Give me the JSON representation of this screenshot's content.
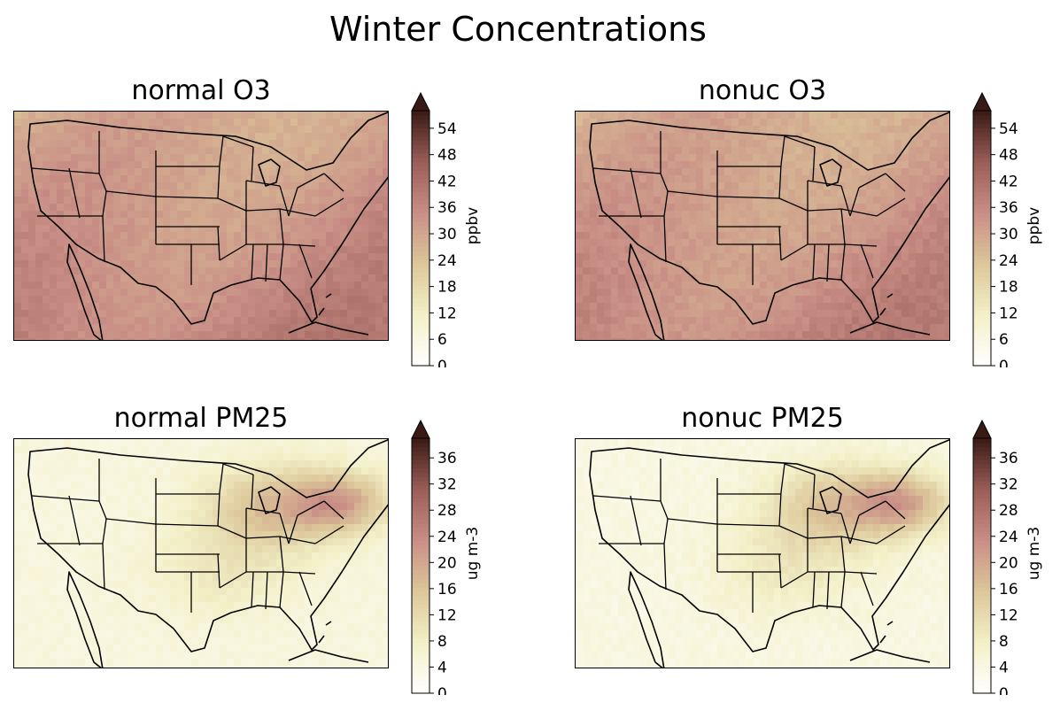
{
  "figure": {
    "suptitle": "Winter Concentrations"
  },
  "panels": [
    {
      "id": "normal-o3",
      "title": "normal O3",
      "colorbar": {
        "label": "ppbv",
        "min": 0,
        "max": 58,
        "extend": "max",
        "ticks": [
          "0",
          "6",
          "12",
          "18",
          "24",
          "30",
          "36",
          "42",
          "48",
          "54"
        ]
      },
      "field_level": 0.55
    },
    {
      "id": "nonuc-o3",
      "title": "nonuc O3",
      "colorbar": {
        "label": "ppbv",
        "min": 0,
        "max": 58,
        "extend": "max",
        "ticks": [
          "0",
          "6",
          "12",
          "18",
          "24",
          "30",
          "36",
          "42",
          "48",
          "54"
        ]
      },
      "field_level": 0.54
    },
    {
      "id": "normal-pm25",
      "title": "normal PM25",
      "colorbar": {
        "label": "ug m-3",
        "min": 0,
        "max": 39,
        "extend": "max",
        "ticks": [
          "0",
          "4",
          "8",
          "12",
          "16",
          "20",
          "24",
          "28",
          "32",
          "36"
        ]
      },
      "field_level": 0.12
    },
    {
      "id": "nonuc-pm25",
      "title": "nonuc PM25",
      "colorbar": {
        "label": "ug m-3",
        "min": 0,
        "max": 39,
        "extend": "max",
        "ticks": [
          "0",
          "4",
          "8",
          "12",
          "16",
          "20",
          "24",
          "28",
          "32",
          "36"
        ]
      },
      "field_level": 0.11
    }
  ],
  "colormap": {
    "name": "pink-brown",
    "stops": [
      "#ffffff",
      "#f3f0c8",
      "#dcc79a",
      "#c98f86",
      "#9a5e58",
      "#3a1a14"
    ]
  },
  "boundary_color": "#000000"
}
